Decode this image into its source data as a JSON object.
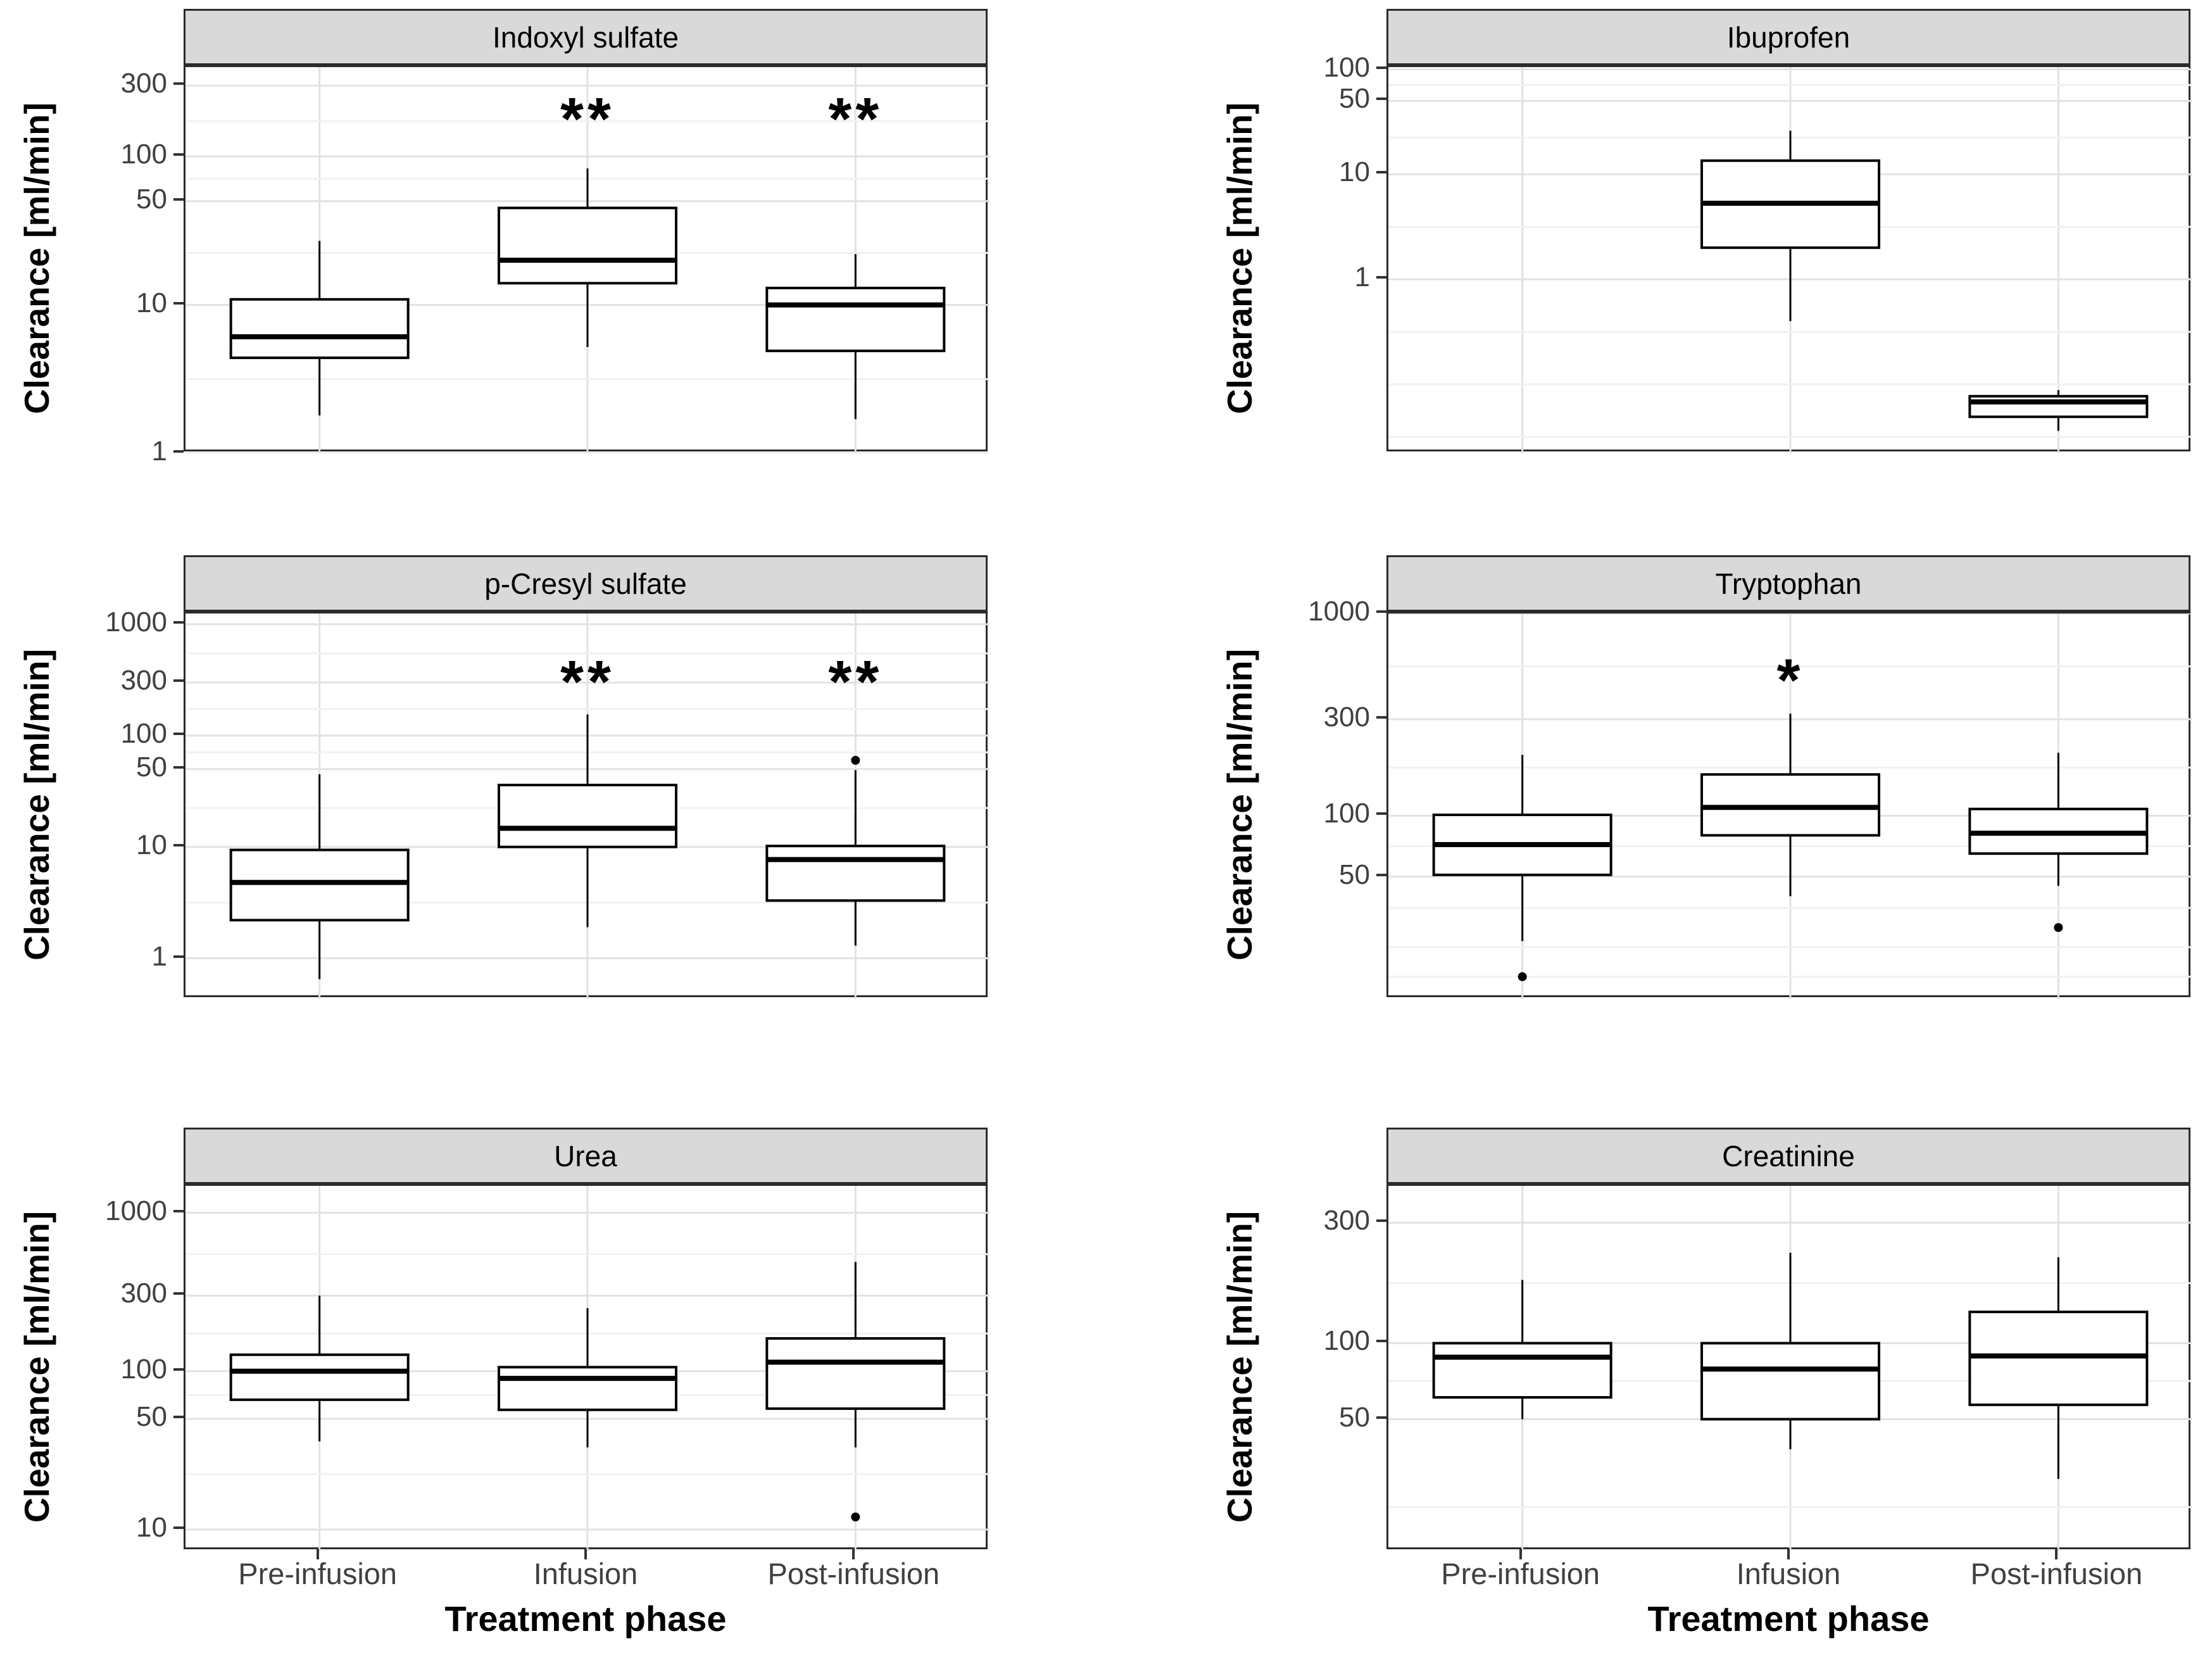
{
  "figure": {
    "y_axis_title": "Clearance [ml/min]",
    "x_axis_title": "Treatment phase",
    "categories": [
      "Pre-infusion",
      "Infusion",
      "Post-infusion"
    ],
    "colors": {
      "strip_fill": "#d9d9d9",
      "panel_border": "#2b2b2b",
      "grid_major": "#e2e2e2",
      "grid_minor": "#f1f1f1",
      "box_stroke": "#000000",
      "tick_label": "#404040",
      "significance": "#000000"
    }
  },
  "chart_data": [
    {
      "type": "boxplot",
      "title": "Indoxyl sulfate",
      "row": 0,
      "col": 0,
      "ylabel": "Clearance [ml/min]",
      "yticks": [
        1,
        10,
        50,
        100,
        300
      ],
      "minor_ticks": [
        3.16,
        22.4,
        70.8,
        173
      ],
      "ylim": [
        1.0,
        400
      ],
      "sig_y": 240,
      "categories": [
        "Pre-infusion",
        "Infusion",
        "Post-infusion"
      ],
      "series": [
        {
          "category": "Pre-infusion",
          "whisker_low": 1.8,
          "q1": 4.4,
          "median": 6.1,
          "q3": 10.9,
          "whisker_high": 27,
          "outliers": [],
          "significance": null
        },
        {
          "category": "Infusion",
          "whisker_low": 5.2,
          "q1": 14.0,
          "median": 20.0,
          "q3": 45.0,
          "whisker_high": 83,
          "outliers": [],
          "significance": "**"
        },
        {
          "category": "Post-infusion",
          "whisker_low": 1.7,
          "q1": 4.9,
          "median": 10.0,
          "q3": 13.0,
          "whisker_high": 22,
          "outliers": [],
          "significance": "**"
        }
      ]
    },
    {
      "type": "boxplot",
      "title": "Ibuprofen",
      "row": 0,
      "col": 1,
      "ylabel": "Clearance [ml/min]",
      "yticks": [
        1,
        10,
        50,
        100
      ],
      "minor_ticks": [
        0.0316,
        0.1,
        0.316,
        3.16,
        22.4,
        70.8
      ],
      "ylim": [
        0.022,
        105
      ],
      "sig_y": null,
      "categories": [
        "Pre-infusion",
        "Infusion",
        "Post-infusion"
      ],
      "series": [
        {
          "category": "Pre-infusion",
          "whisker_low": null,
          "q1": null,
          "median": null,
          "q3": null,
          "whisker_high": null,
          "outliers": [],
          "significance": null
        },
        {
          "category": "Infusion",
          "whisker_low": 0.4,
          "q1": 2.0,
          "median": 5.3,
          "q3": 13.5,
          "whisker_high": 26,
          "outliers": [],
          "significance": null
        },
        {
          "category": "Post-infusion",
          "whisker_low": 0.036,
          "q1": 0.049,
          "median": 0.068,
          "q3": 0.077,
          "whisker_high": 0.088,
          "outliers": [],
          "significance": null
        }
      ]
    },
    {
      "type": "boxplot",
      "title": "p-Cresyl sulfate",
      "row": 1,
      "col": 0,
      "ylabel": "Clearance [ml/min]",
      "yticks": [
        1,
        10,
        50,
        100,
        300,
        1000
      ],
      "minor_ticks": [
        3.16,
        22.4,
        70.8,
        173,
        548
      ],
      "ylim": [
        0.43,
        1250
      ],
      "sig_y": 450,
      "categories": [
        "Pre-infusion",
        "Infusion",
        "Post-infusion"
      ],
      "series": [
        {
          "category": "Pre-infusion",
          "whisker_low": 0.65,
          "q1": 2.2,
          "median": 4.8,
          "q3": 9.4,
          "whisker_high": 45,
          "outliers": [],
          "significance": null
        },
        {
          "category": "Infusion",
          "whisker_low": 1.9,
          "q1": 10.0,
          "median": 14.7,
          "q3": 36.0,
          "whisker_high": 155,
          "outliers": [],
          "significance": "**"
        },
        {
          "category": "Post-infusion",
          "whisker_low": 1.3,
          "q1": 3.3,
          "median": 7.7,
          "q3": 10.2,
          "whisker_high": 49,
          "outliers": [
            60
          ],
          "significance": "**"
        }
      ]
    },
    {
      "type": "boxplot",
      "title": "Tryptophan",
      "row": 1,
      "col": 1,
      "ylabel": "Clearance [ml/min]",
      "yticks": [
        50,
        100,
        300,
        1000
      ],
      "minor_ticks": [
        16,
        22.4,
        35,
        70.8,
        173,
        548
      ],
      "ylim": [
        12.4,
        1000
      ],
      "sig_y": 580,
      "categories": [
        "Pre-infusion",
        "Infusion",
        "Post-infusion"
      ],
      "series": [
        {
          "category": "Pre-infusion",
          "whisker_low": 24,
          "q1": 51,
          "median": 72,
          "q3": 101,
          "whisker_high": 200,
          "outliers": [
            16
          ],
          "significance": null
        },
        {
          "category": "Infusion",
          "whisker_low": 40,
          "q1": 80,
          "median": 110,
          "q3": 160,
          "whisker_high": 320,
          "outliers": [],
          "significance": "*"
        },
        {
          "category": "Post-infusion",
          "whisker_low": 45,
          "q1": 65,
          "median": 82,
          "q3": 108,
          "whisker_high": 205,
          "outliers": [
            28
          ],
          "significance": null
        }
      ]
    },
    {
      "type": "boxplot",
      "title": "Urea",
      "row": 2,
      "col": 0,
      "ylabel": "Clearance [ml/min]",
      "yticks": [
        10,
        50,
        100,
        300,
        1000
      ],
      "minor_ticks": [
        22.4,
        70.8,
        173,
        548
      ],
      "ylim": [
        7.3,
        1480
      ],
      "sig_y": null,
      "categories": [
        "Pre-infusion",
        "Infusion",
        "Post-infusion"
      ],
      "series": [
        {
          "category": "Pre-infusion",
          "whisker_low": 36,
          "q1": 66,
          "median": 100,
          "q3": 127,
          "whisker_high": 300,
          "outliers": [],
          "significance": null
        },
        {
          "category": "Infusion",
          "whisker_low": 33,
          "q1": 57,
          "median": 90,
          "q3": 106,
          "whisker_high": 250,
          "outliers": [],
          "significance": null
        },
        {
          "category": "Post-infusion",
          "whisker_low": 33,
          "q1": 58,
          "median": 114,
          "q3": 161,
          "whisker_high": 490,
          "outliers": [
            12
          ],
          "significance": null
        }
      ]
    },
    {
      "type": "boxplot",
      "title": "Creatinine",
      "row": 2,
      "col": 1,
      "ylabel": "Clearance [ml/min]",
      "yticks": [
        50,
        100,
        300
      ],
      "minor_ticks": [
        22.4,
        70.8,
        173
      ],
      "ylim": [
        15,
        420
      ],
      "sig_y": null,
      "categories": [
        "Pre-infusion",
        "Infusion",
        "Post-infusion"
      ],
      "series": [
        {
          "category": "Pre-infusion",
          "whisker_low": 50,
          "q1": 61,
          "median": 88,
          "q3": 100,
          "whisker_high": 178,
          "outliers": [],
          "significance": null
        },
        {
          "category": "Infusion",
          "whisker_low": 38,
          "q1": 50,
          "median": 79,
          "q3": 100,
          "whisker_high": 228,
          "outliers": [],
          "significance": null
        },
        {
          "category": "Post-infusion",
          "whisker_low": 29,
          "q1": 57,
          "median": 89,
          "q3": 133,
          "whisker_high": 219,
          "outliers": [],
          "significance": null
        }
      ]
    }
  ]
}
